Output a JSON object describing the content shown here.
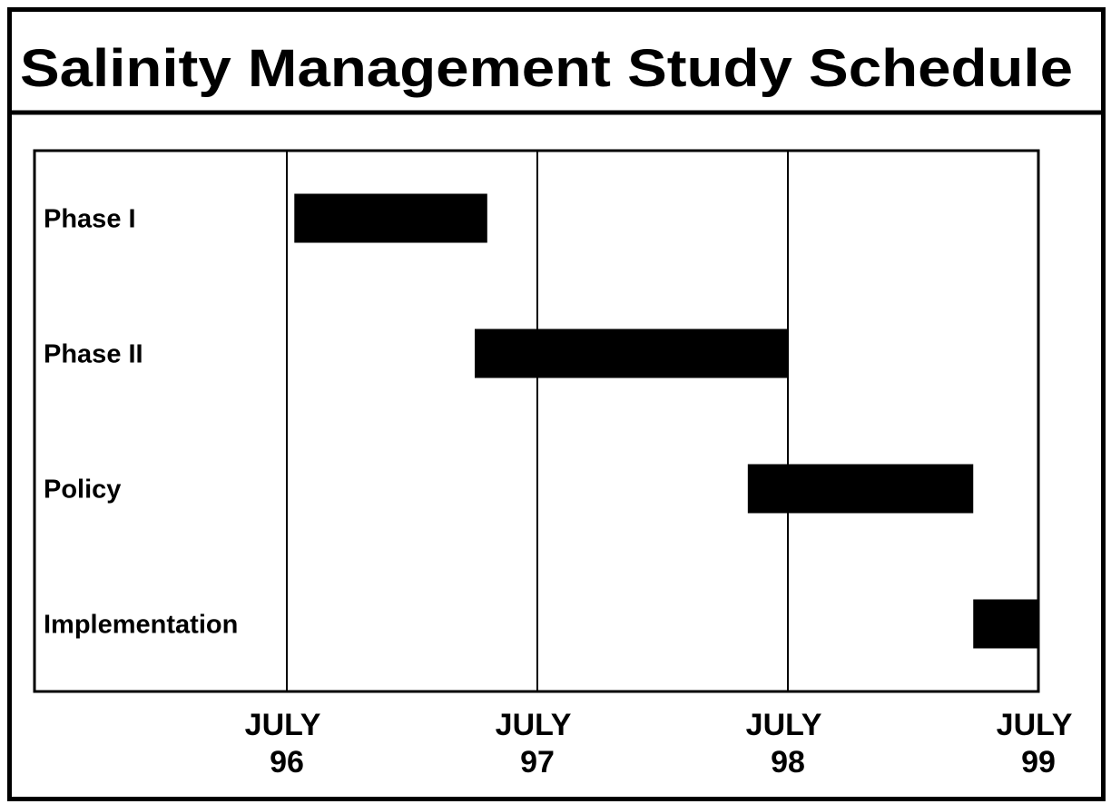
{
  "chart_data": {
    "type": "gantt",
    "title": "Salinity Management Study Schedule",
    "categories": [
      "Phase I",
      "Phase II",
      "Policy",
      "Implementation"
    ],
    "starts": [
      1996.53,
      1997.25,
      1998.34,
      1999.24
    ],
    "ends": [
      1997.3,
      1998.5,
      1999.24,
      1999.5
    ],
    "color": "#000000",
    "xlim": [
      1996.5,
      1999.5
    ],
    "xticks": [
      {
        "value": 1996.5,
        "label": "JULY 96"
      },
      {
        "value": 1997.5,
        "label": "JULY 97"
      },
      {
        "value": 1998.5,
        "label": "JULY 98"
      },
      {
        "value": 1999.5,
        "label": "JULY 99"
      }
    ],
    "grid": true
  }
}
